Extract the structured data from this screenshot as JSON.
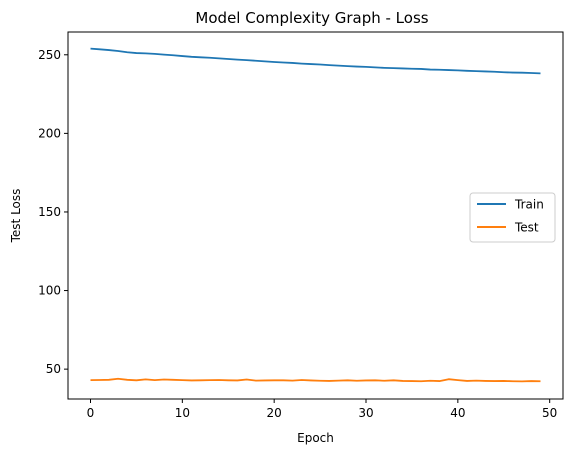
{
  "chart_data": {
    "type": "line",
    "title": "Model Complexity Graph - Loss",
    "xlabel": "Epoch",
    "ylabel": "Test Loss",
    "xlim": [
      -2.45,
      51.45
    ],
    "ylim": [
      31,
      264.5
    ],
    "x_ticks": [
      0,
      10,
      20,
      30,
      40,
      50
    ],
    "y_ticks": [
      50,
      100,
      150,
      200,
      250
    ],
    "grid": false,
    "legend_position": "center-right",
    "x": [
      0,
      1,
      2,
      3,
      4,
      5,
      6,
      7,
      8,
      9,
      10,
      11,
      12,
      13,
      14,
      15,
      16,
      17,
      18,
      19,
      20,
      21,
      22,
      23,
      24,
      25,
      26,
      27,
      28,
      29,
      30,
      31,
      32,
      33,
      34,
      35,
      36,
      37,
      38,
      39,
      40,
      41,
      42,
      43,
      44,
      45,
      46,
      47,
      48,
      49
    ],
    "series": [
      {
        "name": "Train",
        "color": "#1f77b4",
        "values": [
          253.9,
          253.5,
          253.0,
          252.4,
          251.6,
          251.1,
          250.9,
          250.6,
          250.1,
          249.7,
          249.2,
          248.7,
          248.4,
          248.1,
          247.7,
          247.3,
          246.9,
          246.6,
          246.2,
          245.8,
          245.4,
          245.1,
          244.8,
          244.4,
          244.1,
          243.8,
          243.4,
          243.1,
          242.8,
          242.5,
          242.3,
          242.0,
          241.7,
          241.5,
          241.3,
          241.1,
          241.0,
          240.6,
          240.5,
          240.3,
          240.1,
          239.8,
          239.6,
          239.4,
          239.2,
          238.9,
          238.7,
          238.6,
          238.4,
          238.2
        ]
      },
      {
        "name": "Test",
        "color": "#ff7f0e",
        "values": [
          43.0,
          43.1,
          43.2,
          43.9,
          43.2,
          42.9,
          43.5,
          43.0,
          43.4,
          43.2,
          43.0,
          42.8,
          42.9,
          43.0,
          43.1,
          42.9,
          42.8,
          43.4,
          42.7,
          42.8,
          42.9,
          42.9,
          42.7,
          43.1,
          42.8,
          42.6,
          42.5,
          42.7,
          42.9,
          42.6,
          42.8,
          42.9,
          42.6,
          42.9,
          42.5,
          42.4,
          42.3,
          42.6,
          42.4,
          43.6,
          43.0,
          42.5,
          42.7,
          42.5,
          42.4,
          42.5,
          42.3,
          42.2,
          42.4,
          42.3
        ]
      }
    ]
  }
}
